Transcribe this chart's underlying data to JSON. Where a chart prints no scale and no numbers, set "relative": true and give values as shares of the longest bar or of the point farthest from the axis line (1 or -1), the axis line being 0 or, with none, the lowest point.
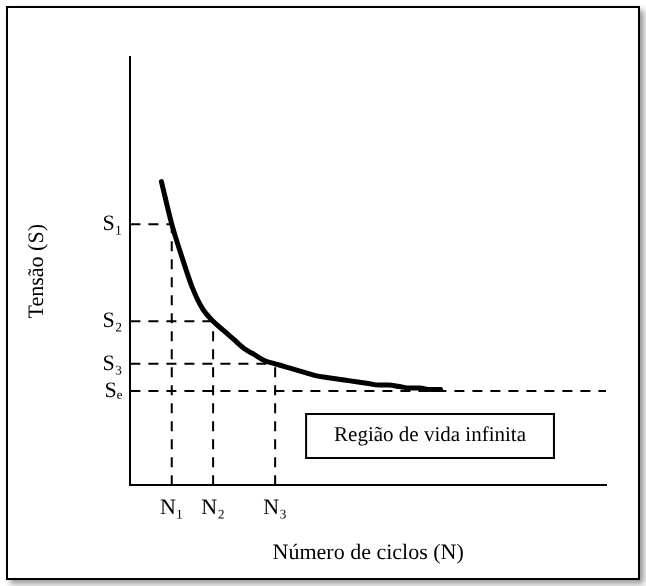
{
  "chart_data": {
    "type": "line",
    "relative": true,
    "xlabel": "Número de ciclos (N)",
    "ylabel": "Tensão (S)",
    "categories": [
      null,
      null,
      null,
      null,
      "N₁",
      null,
      null,
      null,
      "N₂",
      null,
      null,
      null,
      null,
      null,
      "N₃",
      null,
      null,
      null,
      null,
      null,
      null,
      null,
      null,
      null,
      null,
      null,
      null,
      null,
      null,
      null,
      null,
      null,
      null,
      null,
      null,
      null,
      null,
      null,
      null,
      null,
      null,
      null,
      null,
      null,
      null,
      null,
      null
    ],
    "series": [
      {
        "color": "#000000",
        "values": [
          null,
          null,
          null,
          1,
          0.86,
          0.75,
          0.65,
          0.58,
          0.54,
          0.51,
          0.48,
          0.45,
          0.43,
          0.41,
          0.4,
          0.39,
          0.38,
          0.37,
          0.36,
          0.355,
          0.35,
          0.345,
          0.34,
          0.335,
          0.33,
          0.33,
          0.325,
          0.32,
          0.32,
          0.315,
          0.315,
          null,
          null,
          null,
          null,
          null,
          null,
          null,
          null,
          null,
          null,
          null,
          null,
          null,
          null,
          null,
          null
        ]
      }
    ],
    "ref_lines": [
      {
        "axis": "y",
        "value": 0.86,
        "label": "S₁",
        "line_style": "dashed"
      },
      {
        "axis": "y",
        "value": 0.54,
        "label": "S₂",
        "line_style": "dashed"
      },
      {
        "axis": "y",
        "value": 0.4,
        "label": "S₃",
        "line_style": "dashed"
      },
      {
        "axis": "y",
        "value": 0.31,
        "label": "Sₑ",
        "line_style": "dashed"
      },
      {
        "axis": "x",
        "value": "N₁",
        "line_style": "dashed"
      },
      {
        "axis": "x",
        "value": "N₂",
        "line_style": "dashed"
      },
      {
        "axis": "x",
        "value": "N₃",
        "line_style": "dashed"
      }
    ],
    "annotations": [
      "Região de vida infinita"
    ],
    "legend": false,
    "marker": "none",
    "line_style": "solid"
  }
}
